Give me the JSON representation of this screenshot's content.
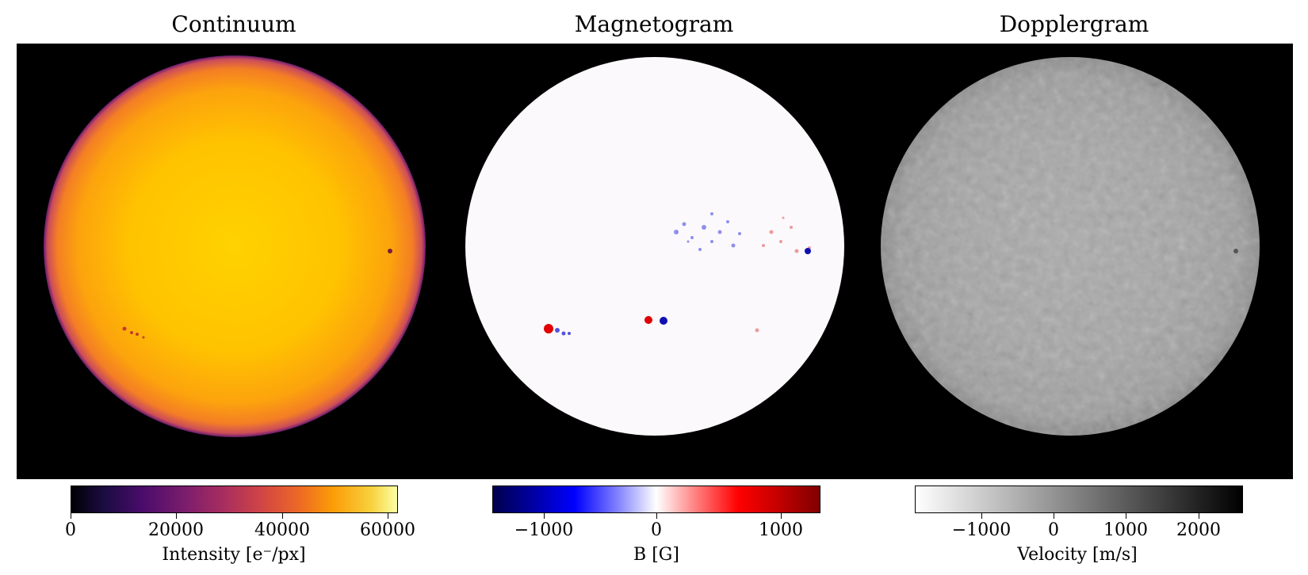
{
  "panels": [
    {
      "title": "Continuum",
      "colorbar": {
        "label": "Intensity [e⁻/px]",
        "ticks": [
          "0",
          "20000",
          "40000",
          "60000"
        ],
        "tick_values": [
          0,
          20000,
          40000,
          60000
        ],
        "range": [
          0,
          62000
        ],
        "colormap": "inferno",
        "colors": [
          "#000004",
          "#420a68",
          "#932667",
          "#dd513a",
          "#fca50a",
          "#fcffa4"
        ]
      }
    },
    {
      "title": "Magnetogram",
      "colorbar": {
        "label": "B [G]",
        "ticks": [
          "−1000",
          "0",
          "1000"
        ],
        "tick_values": [
          -1000,
          0,
          1000
        ],
        "range": [
          -1450,
          1450
        ],
        "colormap": "seismic",
        "colors": [
          "#00004c",
          "#0000ff",
          "#ffffff",
          "#ff0000",
          "#7f0000"
        ]
      }
    },
    {
      "title": "Dopplergram",
      "colorbar": {
        "label": "Velocity [m/s]",
        "ticks": [
          "−1000",
          "0",
          "1000",
          "2000"
        ],
        "tick_values": [
          -1000,
          0,
          1000,
          2000
        ],
        "range": [
          -1800,
          2600
        ],
        "colormap": "gray_r",
        "colors": [
          "#ffffff",
          "#000000"
        ]
      }
    }
  ]
}
